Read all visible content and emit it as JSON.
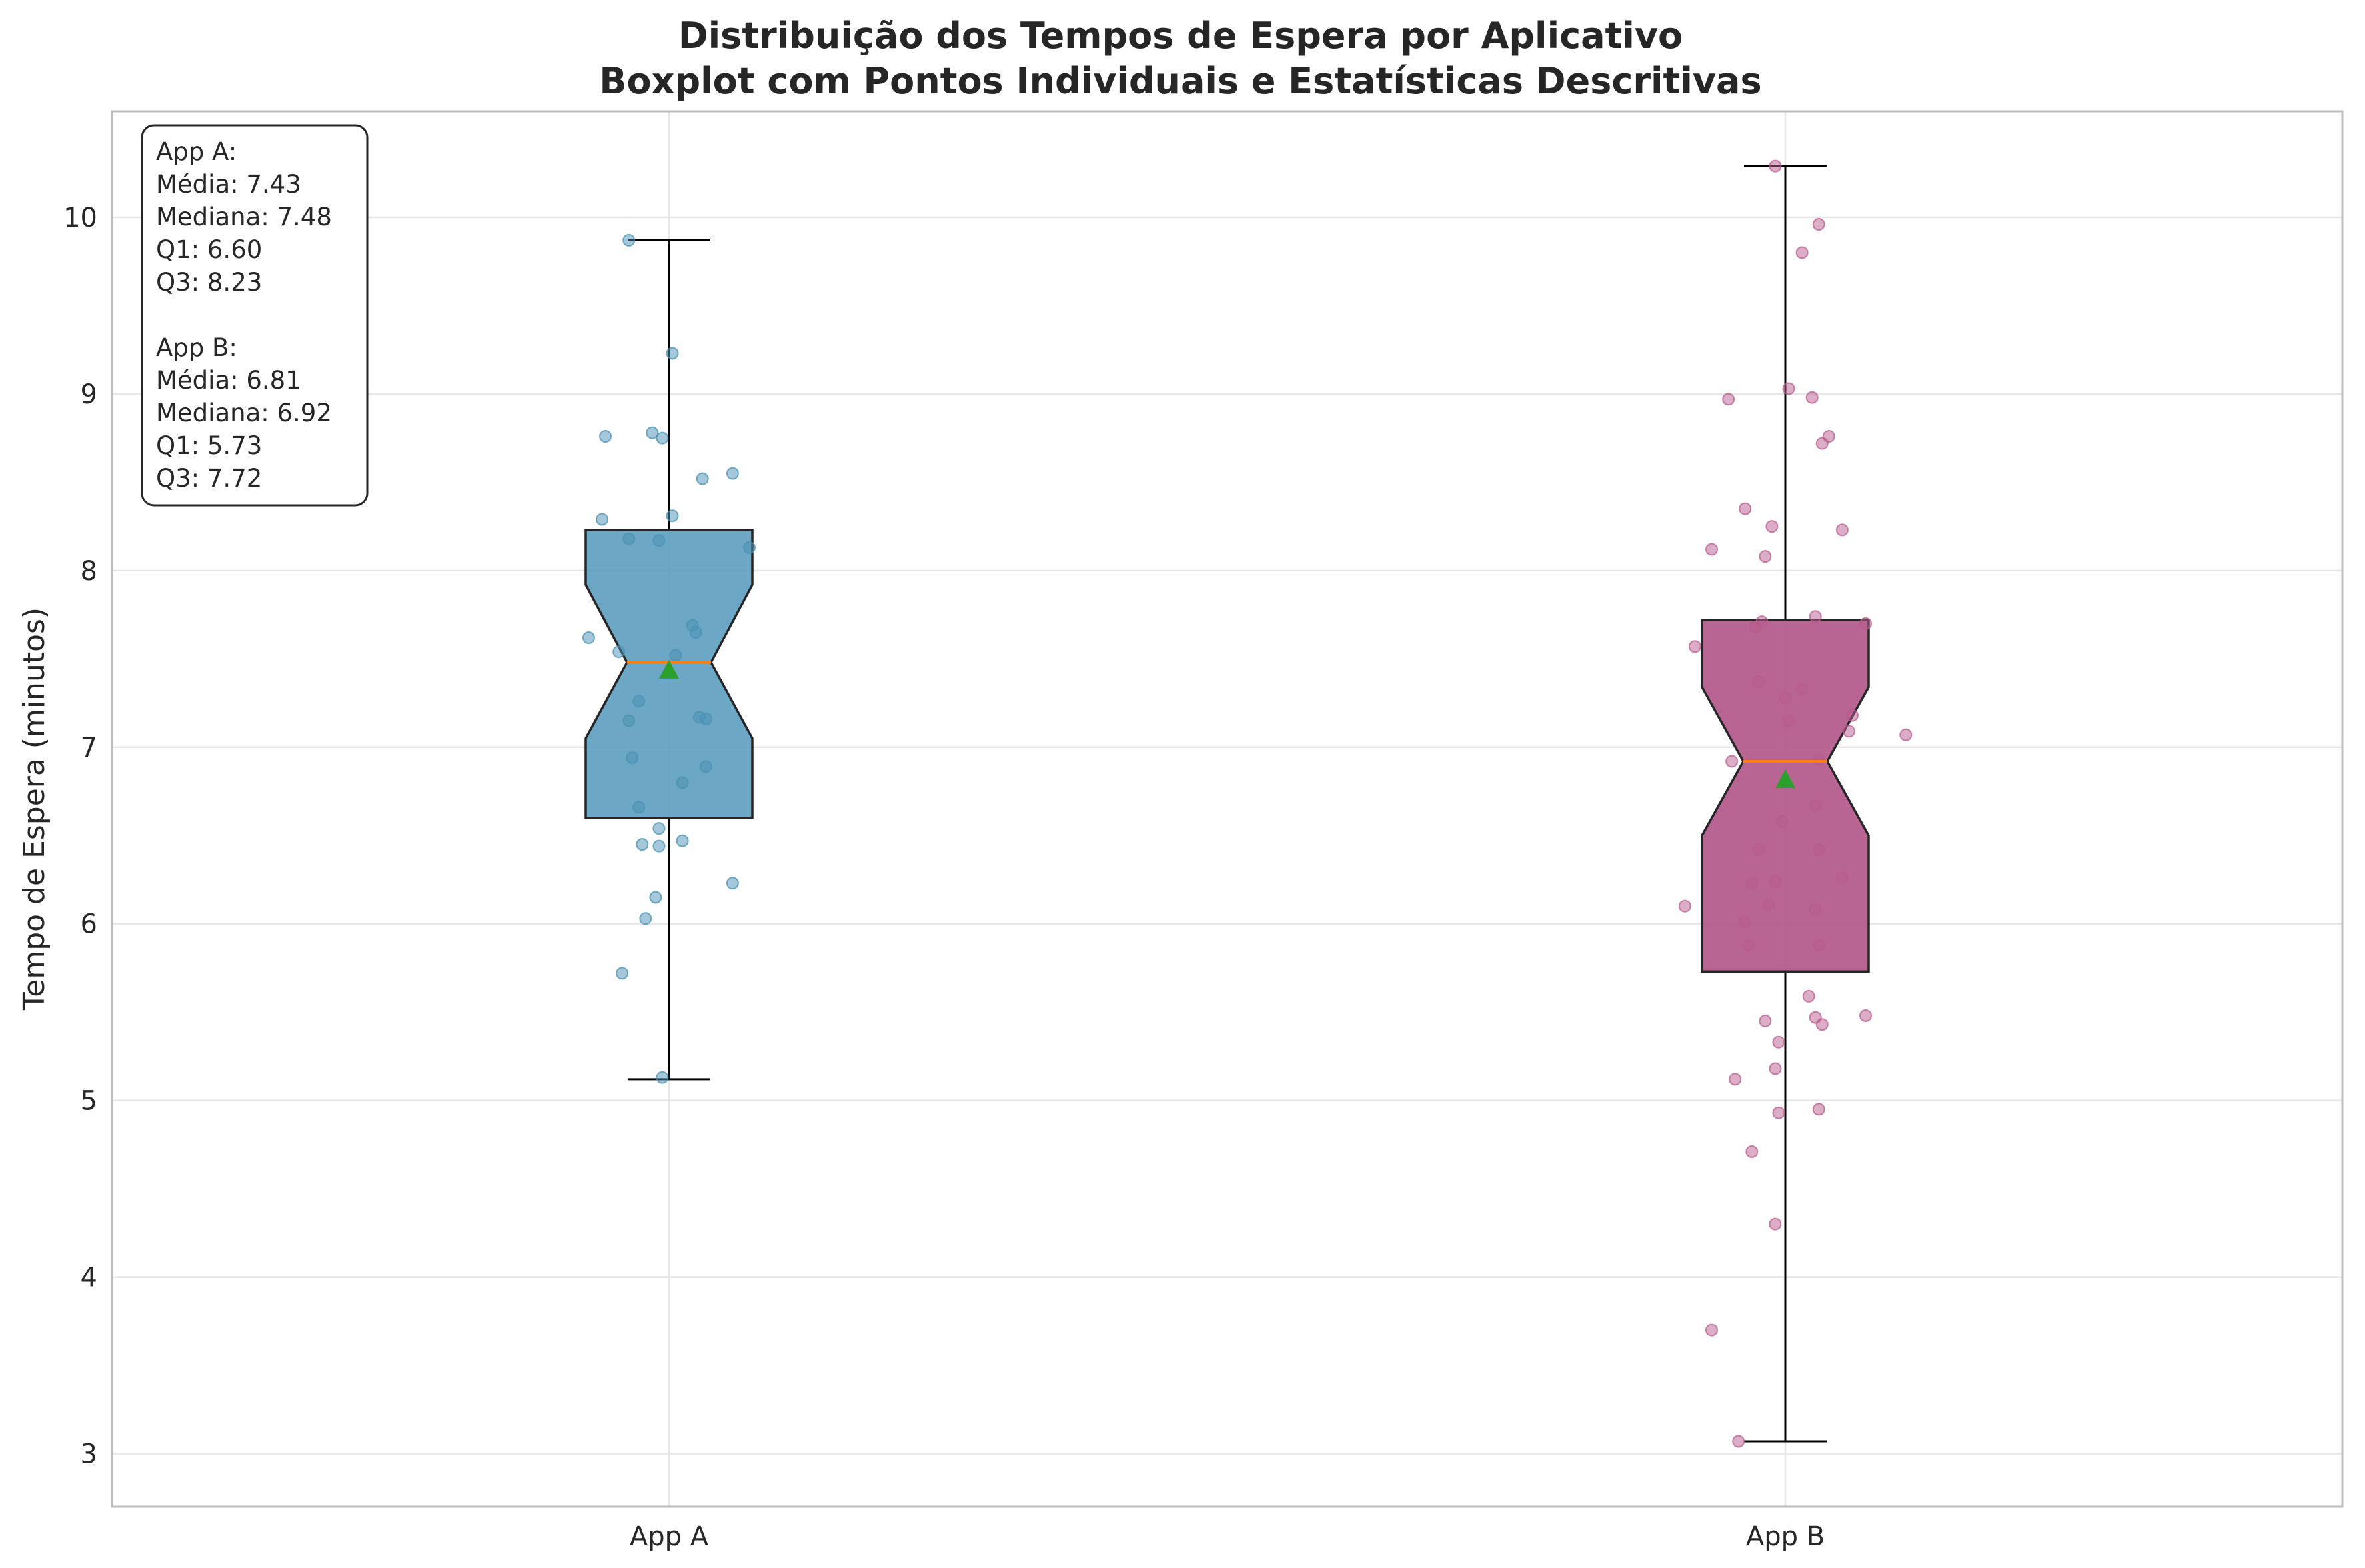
{
  "chart_data": {
    "type": "box",
    "title_lines": [
      "Distribuição dos Tempos de Espera por Aplicativo",
      "Boxplot com Pontos Individuais e Estatísticas Descritivas"
    ],
    "xlabel": "",
    "ylabel": "Tempo de Espera (minutos)",
    "ylim": [
      2.7,
      10.6
    ],
    "yticks": [
      3,
      4,
      5,
      6,
      7,
      8,
      9,
      10
    ],
    "grid": true,
    "categories": [
      "App A",
      "App B"
    ],
    "series": [
      {
        "name": "App A",
        "color": "#4a90b3",
        "box_color": "#5c9ebf",
        "whisker_low": 5.12,
        "q1": 6.6,
        "median": 7.48,
        "q3": 8.23,
        "whisker_high": 9.87,
        "mean": 7.43,
        "notch_low": 7.05,
        "notch_high": 7.92,
        "points": [
          9.87,
          9.23,
          8.78,
          8.76,
          8.75,
          8.55,
          8.52,
          8.31,
          8.29,
          8.18,
          8.17,
          8.13,
          7.69,
          7.65,
          7.62,
          7.54,
          7.52,
          7.26,
          7.17,
          7.16,
          7.15,
          6.94,
          6.89,
          6.8,
          6.66,
          6.54,
          6.47,
          6.45,
          6.44,
          6.23,
          6.15,
          6.03,
          5.72,
          5.13
        ],
        "jitter": [
          -0.12,
          0.01,
          -0.05,
          -0.19,
          -0.02,
          0.19,
          0.1,
          0.01,
          -0.2,
          -0.12,
          -0.03,
          0.24,
          0.07,
          0.08,
          -0.24,
          -0.15,
          0.02,
          -0.09,
          0.09,
          0.11,
          -0.12,
          -0.11,
          0.11,
          0.04,
          -0.09,
          -0.03,
          0.04,
          -0.08,
          -0.03,
          0.19,
          -0.04,
          -0.07,
          -0.14,
          -0.02
        ]
      },
      {
        "name": "App B",
        "color": "#b85c8e",
        "box_color": "#b05487",
        "whisker_low": 3.07,
        "q1": 5.73,
        "median": 6.92,
        "q3": 7.72,
        "whisker_high": 10.29,
        "mean": 6.81,
        "notch_low": 6.5,
        "notch_high": 7.34,
        "points": [
          10.29,
          9.96,
          9.8,
          9.03,
          8.98,
          8.97,
          8.76,
          8.72,
          8.35,
          8.25,
          8.23,
          8.12,
          8.08,
          7.74,
          7.71,
          7.7,
          7.68,
          7.57,
          7.37,
          7.33,
          7.28,
          7.18,
          7.15,
          7.09,
          7.07,
          6.93,
          6.92,
          6.67,
          6.58,
          6.42,
          6.42,
          6.26,
          6.24,
          6.23,
          6.11,
          6.1,
          6.08,
          6.01,
          5.88,
          5.88,
          5.59,
          5.48,
          5.47,
          5.45,
          5.43,
          5.33,
          5.18,
          5.12,
          4.95,
          4.93,
          4.71,
          4.3,
          3.7,
          3.07
        ],
        "jitter": [
          -0.03,
          0.1,
          0.05,
          0.01,
          0.08,
          -0.17,
          0.13,
          0.11,
          -0.12,
          -0.04,
          0.17,
          -0.22,
          -0.06,
          0.09,
          -0.07,
          0.24,
          -0.09,
          -0.27,
          -0.08,
          0.05,
          0.0,
          0.2,
          0.01,
          0.19,
          0.36,
          0.1,
          -0.16,
          0.09,
          -0.01,
          0.1,
          -0.08,
          0.17,
          -0.03,
          -0.1,
          -0.05,
          -0.3,
          0.09,
          -0.12,
          -0.11,
          0.1,
          0.07,
          0.24,
          0.09,
          -0.06,
          0.11,
          -0.02,
          -0.03,
          -0.15,
          0.1,
          -0.02,
          -0.1,
          -0.03,
          -0.22,
          -0.14
        ]
      }
    ],
    "stats_box": {
      "position": "top-left",
      "lines": [
        "App A:",
        "Média: 7.43",
        "Mediana: 7.48",
        "Q1: 6.60",
        "Q3: 8.23",
        "",
        "App B:",
        "Média: 6.81",
        "Mediana: 6.92",
        "Q1: 5.73",
        "Q3: 7.72"
      ]
    },
    "mean_marker_color": "#2ca02c",
    "median_line_color": "#ff7f0e"
  }
}
